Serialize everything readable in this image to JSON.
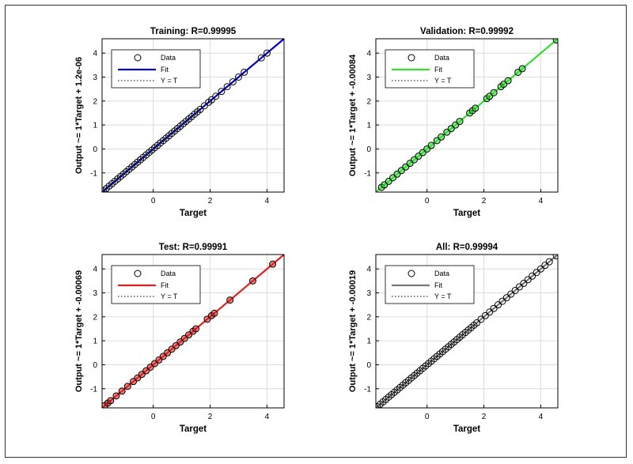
{
  "chart_data": [
    {
      "type": "scatter",
      "title": "Training: R=0.99995",
      "xlabel": "Target",
      "ylabel": "Output ~= 1*Target + 1.2e-06",
      "xlim": [
        -1.8,
        4.6
      ],
      "ylim": [
        -1.8,
        4.6
      ],
      "xticks": [
        0,
        2,
        4
      ],
      "xtick_labels": [
        "0",
        "2",
        "4"
      ],
      "yticks": [
        -1,
        0,
        1,
        2,
        3,
        4
      ],
      "ytick_labels": [
        "-1",
        "0",
        "1",
        "2",
        "3",
        "4"
      ],
      "grid": true,
      "legend_position": "top-left",
      "legend": {
        "data": "Data",
        "fit": "Fit",
        "yt": "Y = T"
      },
      "fit_color": "#0000cc",
      "marker_fill": "none",
      "fit": {
        "slope": 1,
        "intercept": 1.2e-06
      },
      "points": {
        "x": [
          -1.75,
          -1.65,
          -1.55,
          -1.45,
          -1.35,
          -1.25,
          -1.15,
          -1.05,
          -0.95,
          -0.85,
          -0.75,
          -0.65,
          -0.55,
          -0.45,
          -0.35,
          -0.25,
          -0.15,
          -0.05,
          0.05,
          0.15,
          0.25,
          0.35,
          0.45,
          0.55,
          0.65,
          0.75,
          0.85,
          0.95,
          1.05,
          1.15,
          1.25,
          1.35,
          1.45,
          1.55,
          1.65,
          1.8,
          1.95,
          2.05,
          2.2,
          2.4,
          2.6,
          2.8,
          3.0,
          3.2,
          3.8,
          4.0
        ]
      }
    },
    {
      "type": "scatter",
      "title": "Validation: R=0.99992",
      "xlabel": "Target",
      "ylabel": "Output ~= 1*Target + -0.00084",
      "xlim": [
        -1.8,
        4.6
      ],
      "ylim": [
        -1.8,
        4.6
      ],
      "xticks": [
        0,
        2,
        4
      ],
      "xtick_labels": [
        "0",
        "2",
        "4"
      ],
      "yticks": [
        -1,
        0,
        1,
        2,
        3,
        4
      ],
      "ytick_labels": [
        "-1",
        "0",
        "1",
        "2",
        "3",
        "4"
      ],
      "grid": true,
      "legend_position": "top-left",
      "legend": {
        "data": "Data",
        "fit": "Fit",
        "yt": "Y = T"
      },
      "fit_color": "#33dd33",
      "marker_fill": "#33dd33",
      "fit": {
        "slope": 1,
        "intercept": -0.00084
      },
      "points": {
        "x": [
          -1.6,
          -1.5,
          -1.35,
          -1.2,
          -1.05,
          -0.9,
          -0.75,
          -0.6,
          -0.45,
          -0.3,
          -0.15,
          0.0,
          0.15,
          0.35,
          0.5,
          0.7,
          0.85,
          1.0,
          1.15,
          1.5,
          1.6,
          1.7,
          2.1,
          2.2,
          2.35,
          2.6,
          2.7,
          2.85,
          3.2,
          3.35,
          4.55
        ]
      }
    },
    {
      "type": "scatter",
      "title": "Test: R=0.99991",
      "xlabel": "Target",
      "ylabel": "Output ~= 1*Target + -0.00069",
      "xlim": [
        -1.8,
        4.6
      ],
      "ylim": [
        -1.8,
        4.6
      ],
      "xticks": [
        0,
        2,
        4
      ],
      "xtick_labels": [
        "0",
        "2",
        "4"
      ],
      "yticks": [
        -1,
        0,
        1,
        2,
        3,
        4
      ],
      "ytick_labels": [
        "-1",
        "0",
        "1",
        "2",
        "3",
        "4"
      ],
      "grid": true,
      "legend_position": "top-left",
      "legend": {
        "data": "Data",
        "fit": "Fit",
        "yt": "Y = T"
      },
      "fit_color": "#dd2222",
      "marker_fill": "#dd2222",
      "fit": {
        "slope": 1,
        "intercept": -0.00069
      },
      "points": {
        "x": [
          -1.7,
          -1.6,
          -1.5,
          -1.3,
          -1.1,
          -0.9,
          -0.7,
          -0.55,
          -0.4,
          -0.25,
          -0.1,
          0.05,
          0.2,
          0.35,
          0.5,
          0.65,
          0.8,
          0.95,
          1.1,
          1.25,
          1.4,
          1.5,
          1.9,
          2.05,
          2.15,
          2.7,
          3.5,
          4.2
        ]
      }
    },
    {
      "type": "scatter",
      "title": "All: R=0.99994",
      "xlabel": "Target",
      "ylabel": "Output ~= 1*Target + -0.00019",
      "xlim": [
        -1.8,
        4.6
      ],
      "ylim": [
        -1.8,
        4.6
      ],
      "xticks": [
        0,
        2,
        4
      ],
      "xtick_labels": [
        "0",
        "2",
        "4"
      ],
      "yticks": [
        -1,
        0,
        1,
        2,
        3,
        4
      ],
      "ytick_labels": [
        "-1",
        "0",
        "1",
        "2",
        "3",
        "4"
      ],
      "grid": true,
      "legend_position": "top-left",
      "legend": {
        "data": "Data",
        "fit": "Fit",
        "yt": "Y = T"
      },
      "fit_color": "#777777",
      "marker_fill": "none",
      "fit": {
        "slope": 1,
        "intercept": -0.00019
      },
      "points": {
        "x": [
          -1.75,
          -1.65,
          -1.55,
          -1.45,
          -1.35,
          -1.25,
          -1.15,
          -1.05,
          -0.95,
          -0.85,
          -0.75,
          -0.65,
          -0.55,
          -0.45,
          -0.35,
          -0.25,
          -0.15,
          -0.05,
          0.05,
          0.15,
          0.25,
          0.35,
          0.45,
          0.55,
          0.65,
          0.75,
          0.85,
          0.95,
          1.05,
          1.15,
          1.25,
          1.35,
          1.45,
          1.55,
          1.65,
          1.75,
          1.9,
          2.05,
          2.2,
          2.35,
          2.5,
          2.65,
          2.8,
          2.95,
          3.1,
          3.25,
          3.4,
          3.55,
          3.7,
          3.85,
          4.0,
          4.15,
          4.3,
          4.55
        ]
      }
    }
  ]
}
